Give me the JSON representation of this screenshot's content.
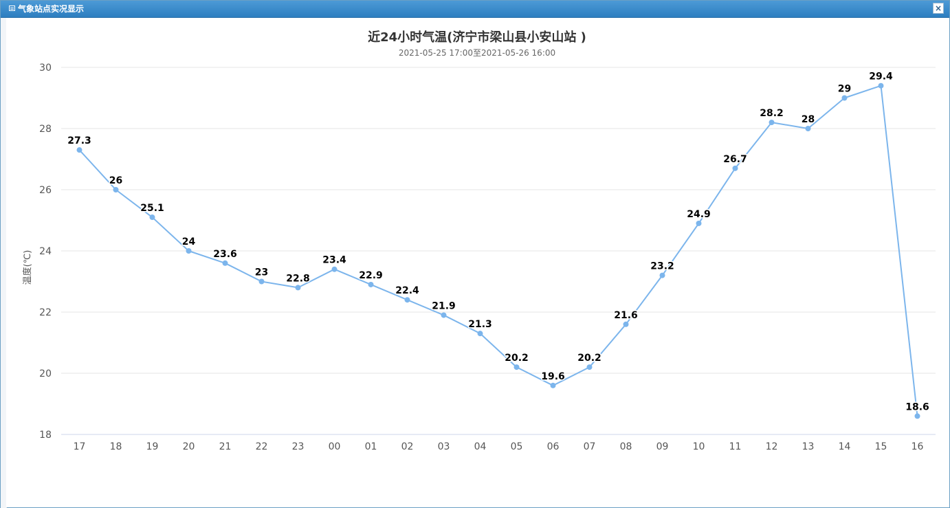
{
  "window": {
    "title": "气象站点实况显示",
    "close_label": "×"
  },
  "colors": {
    "line": "#7cb5ec",
    "grid": "#e6e6e6",
    "titlebar": "#2d7ec0"
  },
  "chart_data": {
    "type": "line",
    "title": "近24小时气温(济宁市梁山县小安山站 )",
    "subtitle": "2021-05-25 17:00至2021-05-26 16:00",
    "ylabel": "温度(℃)",
    "xlabel": "",
    "categories": [
      "17",
      "18",
      "19",
      "20",
      "21",
      "22",
      "23",
      "00",
      "01",
      "02",
      "03",
      "04",
      "05",
      "06",
      "07",
      "08",
      "09",
      "10",
      "11",
      "12",
      "13",
      "14",
      "15",
      "16"
    ],
    "series": [
      {
        "values": [
          27.3,
          26,
          25.1,
          24,
          23.6,
          23,
          22.8,
          23.4,
          22.9,
          22.4,
          21.9,
          21.3,
          20.2,
          19.6,
          20.2,
          21.6,
          23.2,
          24.9,
          26.7,
          28.2,
          28,
          29,
          29.4,
          18.6
        ]
      }
    ],
    "data_labels": [
      "27.3",
      "26",
      "25.1",
      "24",
      "23.6",
      "23",
      "22.8",
      "23.4",
      "22.9",
      "22.4",
      "21.9",
      "21.3",
      "20.2",
      "19.6",
      "20.2",
      "21.6",
      "23.2",
      "24.9",
      "26.7",
      "28.2",
      "28",
      "29",
      "29.4",
      "18.6"
    ],
    "ylim": [
      18,
      30
    ],
    "yticks": [
      "18",
      "20",
      "22",
      "24",
      "26",
      "28",
      "30"
    ],
    "grid": true,
    "legend": "none"
  }
}
